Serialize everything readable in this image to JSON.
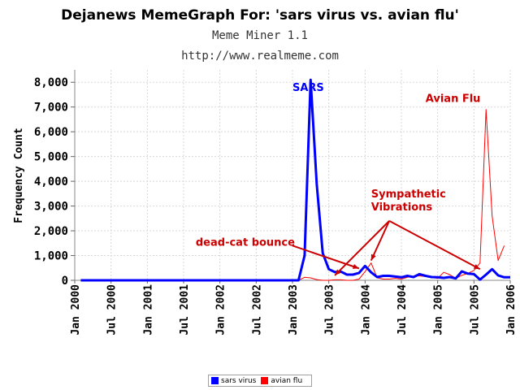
{
  "chart_data": {
    "type": "line",
    "title": "Dejanews MemeGraph For: 'sars virus vs. avian flu'",
    "subtitle": "Meme Miner 1.1",
    "url": "http://www.realmeme.com",
    "ylabel": "Frequency Count",
    "ylim": [
      0,
      8500
    ],
    "y_ticks": [
      "0",
      "1,000",
      "2,000",
      "3,000",
      "4,000",
      "5,000",
      "6,000",
      "7,000",
      "8,000"
    ],
    "x_ticks": [
      "Jan 2000",
      "Jul 2000",
      "Jan 2001",
      "Jul 2001",
      "Jan 2002",
      "Jul 2002",
      "Jan 2003",
      "Jul 2003",
      "Jan 2004",
      "Jul 2004",
      "Jan 2005",
      "Jul 2005",
      "Jan 2006"
    ],
    "grid": true,
    "legend_position": "bottom-center",
    "series": [
      {
        "name": "sars virus",
        "color": "#0000ff",
        "points": [
          [
            "2000-02",
            0
          ],
          [
            "2000-06",
            0
          ],
          [
            "2001-01",
            0
          ],
          [
            "2001-07",
            0
          ],
          [
            "2002-01",
            0
          ],
          [
            "2002-07",
            0
          ],
          [
            "2002-12",
            0
          ],
          [
            "2003-02",
            0
          ],
          [
            "2003-03",
            1000
          ],
          [
            "2003-04",
            8100
          ],
          [
            "2003-05",
            3900
          ],
          [
            "2003-06",
            1100
          ],
          [
            "2003-07",
            450
          ],
          [
            "2003-08",
            330
          ],
          [
            "2003-09",
            350
          ],
          [
            "2003-10",
            230
          ],
          [
            "2003-11",
            230
          ],
          [
            "2003-12",
            300
          ],
          [
            "2004-01",
            580
          ],
          [
            "2004-02",
            320
          ],
          [
            "2004-03",
            130
          ],
          [
            "2004-04",
            180
          ],
          [
            "2004-05",
            180
          ],
          [
            "2004-06",
            150
          ],
          [
            "2004-07",
            120
          ],
          [
            "2004-08",
            180
          ],
          [
            "2004-09",
            130
          ],
          [
            "2004-10",
            250
          ],
          [
            "2004-11",
            180
          ],
          [
            "2004-12",
            130
          ],
          [
            "2005-01",
            120
          ],
          [
            "2005-02",
            100
          ],
          [
            "2005-03",
            130
          ],
          [
            "2005-04",
            80
          ],
          [
            "2005-05",
            360
          ],
          [
            "2005-06",
            270
          ],
          [
            "2005-07",
            250
          ],
          [
            "2005-08",
            30
          ],
          [
            "2005-09",
            230
          ],
          [
            "2005-10",
            450
          ],
          [
            "2005-11",
            200
          ],
          [
            "2005-12",
            120
          ],
          [
            "2006-01",
            120
          ]
        ]
      },
      {
        "name": "avian flu",
        "color": "#ff0000",
        "points": [
          [
            "2000-02",
            0
          ],
          [
            "2000-06",
            0
          ],
          [
            "2001-01",
            0
          ],
          [
            "2001-07",
            0
          ],
          [
            "2002-01",
            0
          ],
          [
            "2002-07",
            0
          ],
          [
            "2002-12",
            0
          ],
          [
            "2003-02",
            0
          ],
          [
            "2003-03",
            120
          ],
          [
            "2003-04",
            100
          ],
          [
            "2003-05",
            30
          ],
          [
            "2003-06",
            0
          ],
          [
            "2003-07",
            0
          ],
          [
            "2003-08",
            20
          ],
          [
            "2003-09",
            20
          ],
          [
            "2003-10",
            0
          ],
          [
            "2003-11",
            0
          ],
          [
            "2003-12",
            50
          ],
          [
            "2004-01",
            350
          ],
          [
            "2004-02",
            700
          ],
          [
            "2004-03",
            100
          ],
          [
            "2004-04",
            50
          ],
          [
            "2004-05",
            50
          ],
          [
            "2004-06",
            80
          ],
          [
            "2004-07",
            50
          ],
          [
            "2004-08",
            120
          ],
          [
            "2004-09",
            160
          ],
          [
            "2004-10",
            180
          ],
          [
            "2004-11",
            150
          ],
          [
            "2004-12",
            120
          ],
          [
            "2005-01",
            80
          ],
          [
            "2005-02",
            320
          ],
          [
            "2005-03",
            230
          ],
          [
            "2005-04",
            80
          ],
          [
            "2005-05",
            200
          ],
          [
            "2005-06",
            280
          ],
          [
            "2005-07",
            400
          ],
          [
            "2005-08",
            700
          ],
          [
            "2005-09",
            6900
          ],
          [
            "2005-10",
            2600
          ],
          [
            "2005-11",
            800
          ],
          [
            "2005-12",
            1400
          ]
        ]
      }
    ],
    "annotations": [
      {
        "text": "SARS",
        "color": "#0000ff",
        "at": [
          "2003-01",
          7650
        ]
      },
      {
        "text": "Avian Flu",
        "color": "#cc0000",
        "at": [
          "2004-11",
          7200
        ]
      },
      {
        "text": "Sympathetic",
        "color": "#cc0000",
        "at": [
          "2004-02",
          3350
        ]
      },
      {
        "text": "Vibrations",
        "color": "#cc0000",
        "at": [
          "2004-02",
          2820
        ]
      },
      {
        "text": "dead-cat bounce",
        "color": "#cc0000",
        "at": [
          "2001-09",
          1400
        ]
      }
    ],
    "arrows": [
      {
        "color": "#cc0000",
        "from": [
          "2003-01",
          1400
        ],
        "to": [
          "2003-12",
          480
        ]
      },
      {
        "color": "#cc0000",
        "from": [
          "2004-05",
          2400
        ],
        "to": [
          "2003-08",
          200
        ]
      },
      {
        "color": "#cc0000",
        "from": [
          "2004-05",
          2400
        ],
        "to": [
          "2004-02",
          800
        ]
      },
      {
        "color": "#cc0000",
        "from": [
          "2004-05",
          2400
        ],
        "to": [
          "2005-08",
          450
        ]
      }
    ]
  }
}
